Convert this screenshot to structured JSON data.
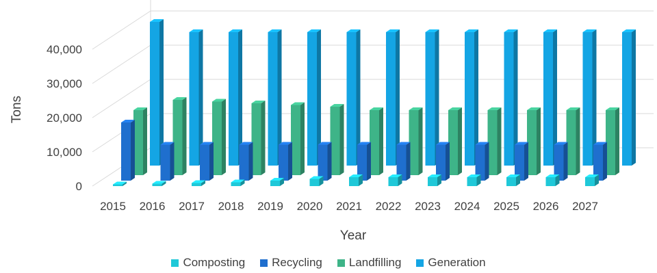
{
  "chart_data": {
    "type": "bar",
    "subtype": "3d-clustered-column",
    "title": "",
    "xlabel": "Year",
    "ylabel": "Tons",
    "categories": [
      "2015",
      "2016",
      "2017",
      "2018",
      "2019",
      "2020",
      "2021",
      "2022",
      "2023",
      "2024",
      "2025",
      "2026",
      "2027"
    ],
    "ylim": [
      0,
      45000
    ],
    "yticks": [
      0,
      10000,
      20000,
      30000,
      40000
    ],
    "ytick_labels": [
      "0",
      "10,000",
      "20,000",
      "30,000",
      "40,000"
    ],
    "grid": true,
    "legend_position": "bottom",
    "series": [
      {
        "name": "Composting",
        "color": "#1fc8d8",
        "values": [
          500,
          700,
          900,
          1100,
          1600,
          2100,
          2600,
          2600,
          2600,
          2600,
          2600,
          2600,
          2600
        ]
      },
      {
        "name": "Recycling",
        "color": "#1f6fce",
        "values": [
          17000,
          10500,
          10500,
          10500,
          10500,
          10500,
          10500,
          10500,
          10500,
          10500,
          10500,
          10500,
          10500
        ]
      },
      {
        "name": "Landfilling",
        "color": "#3eb488",
        "values": [
          19000,
          22000,
          21500,
          21000,
          20500,
          20000,
          19000,
          19000,
          19000,
          19000,
          19000,
          19000,
          19000
        ]
      },
      {
        "name": "Generation",
        "color": "#14a5e4",
        "values": [
          42000,
          39000,
          39000,
          39000,
          39000,
          39000,
          39000,
          39000,
          39000,
          39000,
          39000,
          39000,
          39000
        ]
      }
    ]
  }
}
